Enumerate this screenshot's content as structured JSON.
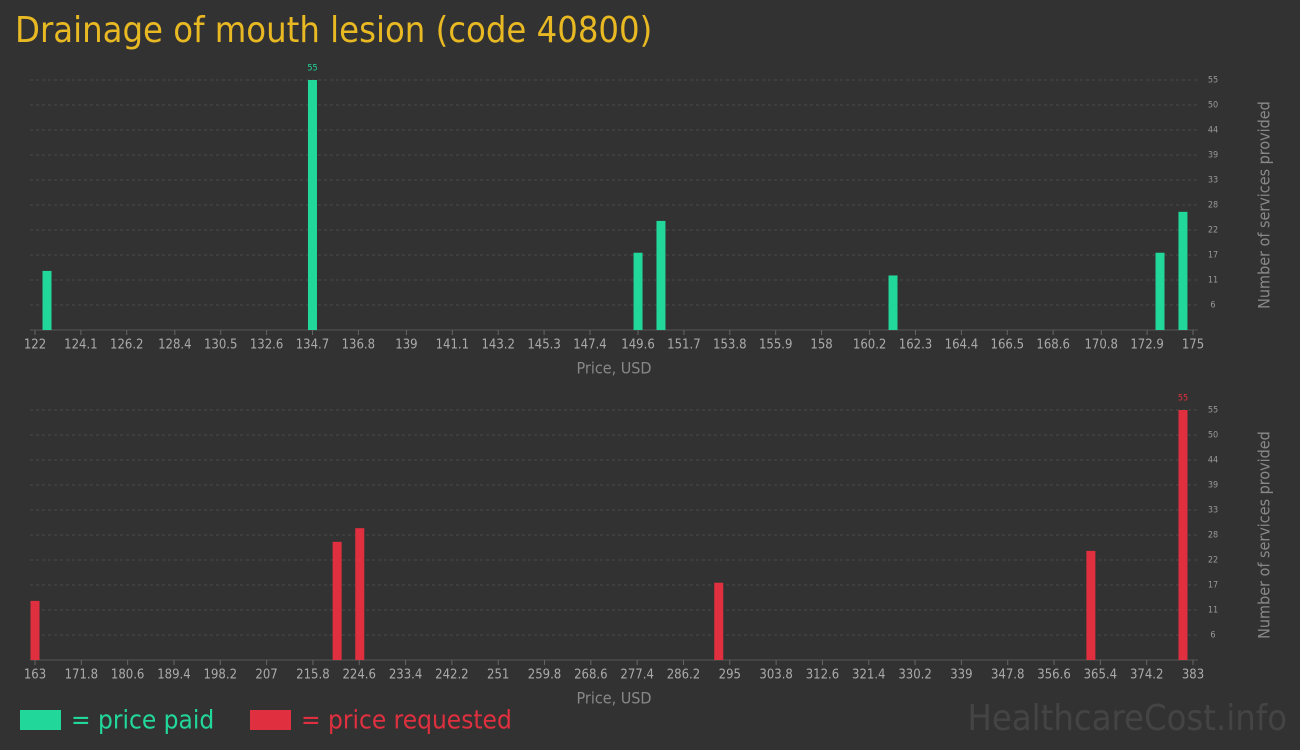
{
  "title": "Drainage of mouth lesion (code 40800)",
  "watermark": "HealthcareCost.info",
  "chart_data": [
    {
      "type": "bar",
      "x_label": "Price, USD",
      "y_label": "Number of services provided",
      "xlim": [
        122,
        175
      ],
      "ylim": [
        0,
        55
      ],
      "grid": true,
      "xticks": [
        122,
        124.1,
        126.2,
        128.4,
        130.5,
        132.6,
        134.7,
        136.8,
        139,
        141.1,
        143.2,
        145.3,
        147.4,
        149.6,
        151.7,
        153.8,
        155.9,
        158,
        160.2,
        162.3,
        164.4,
        166.5,
        168.6,
        170.8,
        172.9,
        175
      ],
      "yticks": [
        {
          "value": 5.5,
          "label": "6"
        },
        11,
        {
          "value": 16.5,
          "label": "17"
        },
        22,
        {
          "value": 27.5,
          "label": "28"
        },
        33,
        {
          "value": 38.5,
          "label": "39"
        },
        44,
        {
          "value": 49.5,
          "label": "50"
        },
        55
      ],
      "series": [
        {
          "name": "= price paid",
          "color": "#22d79a",
          "x": [
            122.55,
            134.7,
            149.6,
            150.65,
            161.27,
            173.49,
            174.54
          ],
          "values": [
            13,
            55,
            17,
            24,
            12,
            17,
            26
          ]
        }
      ]
    },
    {
      "type": "bar",
      "x_label": "Price, USD",
      "y_label": "Number of services provided",
      "xlim": [
        163,
        383
      ],
      "ylim": [
        0,
        55
      ],
      "grid": true,
      "xticks": [
        163,
        171.8,
        180.6,
        189.4,
        198.2,
        207,
        215.8,
        224.6,
        233.4,
        242.2,
        251,
        259.8,
        268.6,
        277.4,
        286.2,
        295,
        303.8,
        312.6,
        321.4,
        330.2,
        339,
        347.8,
        356.6,
        365.4,
        374.2,
        383
      ],
      "yticks": [
        {
          "value": 5.5,
          "label": "6"
        },
        11,
        {
          "value": 16.5,
          "label": "17"
        },
        22,
        {
          "value": 27.5,
          "label": "28"
        },
        33,
        {
          "value": 38.5,
          "label": "39"
        },
        44,
        {
          "value": 49.5,
          "label": "50"
        },
        55
      ],
      "series": [
        {
          "name": "= price requested",
          "color": "#e0303f",
          "x": [
            163,
            220.4,
            224.7,
            292.9,
            363.6,
            381.1
          ],
          "values": [
            13,
            26,
            29,
            17,
            24,
            55
          ]
        }
      ]
    }
  ]
}
